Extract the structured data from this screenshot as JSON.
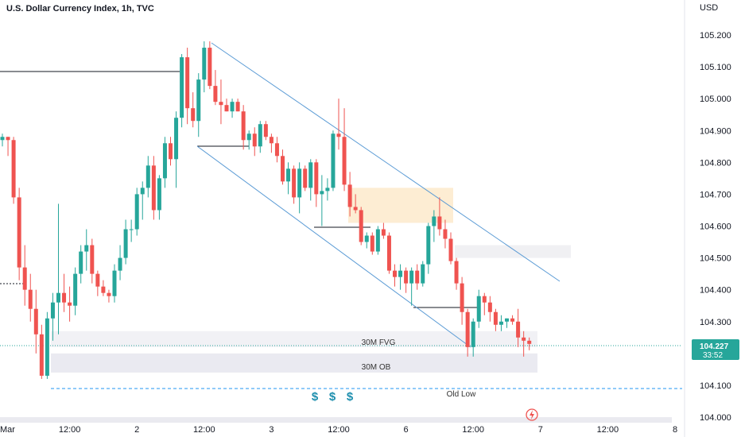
{
  "title": "U.S. Dollar Currency Index, 1h, TVC",
  "chart_data": {
    "type": "candlestick",
    "currency": "USD",
    "y_ticks": [
      104.0,
      104.1,
      104.2,
      104.3,
      104.4,
      104.5,
      104.6,
      104.7,
      104.8,
      104.9,
      105.0,
      105.1,
      105.2
    ],
    "y_tick_labels": [
      "104.000",
      "104.100",
      "104.200",
      "104.300",
      "104.400",
      "104.500",
      "104.600",
      "104.700",
      "104.800",
      "104.900",
      "105.000",
      "105.100",
      "105.200"
    ],
    "x_ticks": [
      {
        "label": "Mar",
        "index": -3
      },
      {
        "label": "12:00",
        "index": 12
      },
      {
        "label": "2",
        "index": 24
      },
      {
        "label": "12:00",
        "index": 36
      },
      {
        "label": "3",
        "index": 48
      },
      {
        "label": "12:00",
        "index": 60
      },
      {
        "label": "6",
        "index": 72
      },
      {
        "label": "12:00",
        "index": 84
      },
      {
        "label": "7",
        "index": 96
      },
      {
        "label": "12:00",
        "index": 108
      },
      {
        "label": "8",
        "index": 120
      }
    ],
    "last_price": "104.227",
    "countdown": "33:52",
    "candles": [
      [
        104.87,
        104.89,
        104.85,
        104.88
      ],
      [
        104.88,
        104.88,
        104.82,
        104.87
      ],
      [
        104.87,
        104.88,
        104.67,
        104.69
      ],
      [
        104.69,
        104.72,
        104.43,
        104.47
      ],
      [
        104.47,
        104.54,
        104.35,
        104.4
      ],
      [
        104.4,
        104.45,
        104.3,
        104.34
      ],
      [
        104.34,
        104.4,
        104.2,
        104.26
      ],
      [
        104.26,
        104.29,
        104.12,
        104.13
      ],
      [
        104.13,
        104.33,
        104.12,
        104.31
      ],
      [
        104.31,
        104.39,
        104.24,
        104.36
      ],
      [
        104.36,
        104.67,
        104.26,
        104.39
      ],
      [
        104.39,
        104.45,
        104.33,
        104.36
      ],
      [
        104.36,
        104.41,
        104.3,
        104.35
      ],
      [
        104.35,
        104.47,
        104.32,
        104.45
      ],
      [
        104.45,
        104.54,
        104.42,
        104.52
      ],
      [
        104.52,
        104.59,
        104.46,
        104.54
      ],
      [
        104.54,
        104.56,
        104.42,
        104.45
      ],
      [
        104.45,
        104.46,
        104.38,
        104.41
      ],
      [
        104.41,
        104.43,
        104.38,
        104.39
      ],
      [
        104.39,
        104.4,
        104.36,
        104.38
      ],
      [
        104.38,
        104.48,
        104.36,
        104.46
      ],
      [
        104.46,
        104.54,
        104.43,
        104.5
      ],
      [
        104.5,
        104.62,
        104.48,
        104.59
      ],
      [
        104.59,
        104.62,
        104.55,
        104.59
      ],
      [
        104.59,
        104.72,
        104.57,
        104.7
      ],
      [
        104.7,
        104.74,
        104.62,
        104.72
      ],
      [
        104.72,
        104.82,
        104.69,
        104.79
      ],
      [
        104.79,
        104.82,
        104.62,
        104.65
      ],
      [
        104.65,
        104.76,
        104.62,
        104.75
      ],
      [
        104.75,
        104.88,
        104.72,
        104.86
      ],
      [
        104.86,
        104.88,
        104.79,
        104.81
      ],
      [
        104.81,
        104.96,
        104.72,
        104.94
      ],
      [
        104.94,
        105.14,
        104.91,
        105.13
      ],
      [
        105.13,
        105.16,
        104.92,
        104.97
      ],
      [
        104.97,
        105.02,
        104.91,
        104.93
      ],
      [
        104.93,
        105.08,
        104.88,
        105.06
      ],
      [
        105.06,
        105.18,
        105.02,
        105.16
      ],
      [
        105.16,
        105.18,
        105.03,
        105.04
      ],
      [
        105.04,
        105.09,
        104.98,
        104.99
      ],
      [
        104.99,
        105.06,
        104.92,
        104.98
      ],
      [
        104.98,
        105.0,
        104.96,
        104.96
      ],
      [
        104.96,
        105.0,
        104.94,
        104.99
      ],
      [
        104.99,
        105.0,
        104.96,
        104.96
      ],
      [
        104.96,
        104.98,
        104.84,
        104.87
      ],
      [
        104.87,
        104.9,
        104.84,
        104.89
      ],
      [
        104.89,
        104.91,
        104.82,
        104.85
      ],
      [
        104.85,
        104.93,
        104.83,
        104.92
      ],
      [
        104.92,
        104.93,
        104.87,
        104.88
      ],
      [
        104.88,
        104.89,
        104.83,
        104.86
      ],
      [
        104.86,
        104.88,
        104.8,
        104.82
      ],
      [
        104.82,
        104.84,
        104.73,
        104.74
      ],
      [
        104.74,
        104.8,
        104.7,
        104.78
      ],
      [
        104.78,
        104.79,
        104.67,
        104.69
      ],
      [
        104.69,
        104.8,
        104.64,
        104.78
      ],
      [
        104.78,
        104.79,
        104.71,
        104.72
      ],
      [
        104.72,
        104.81,
        104.68,
        104.8
      ],
      [
        104.8,
        104.81,
        104.66,
        104.7
      ],
      [
        104.7,
        104.76,
        104.6,
        104.71
      ],
      [
        104.71,
        104.75,
        104.68,
        104.72
      ],
      [
        104.72,
        104.9,
        104.71,
        104.89
      ],
      [
        104.89,
        105.0,
        104.84,
        104.88
      ],
      [
        104.88,
        104.97,
        104.71,
        104.73
      ],
      [
        104.73,
        104.77,
        104.63,
        104.66
      ],
      [
        104.66,
        104.7,
        104.64,
        104.65
      ],
      [
        104.65,
        104.66,
        104.54,
        104.55
      ],
      [
        104.55,
        104.58,
        104.53,
        104.57
      ],
      [
        104.57,
        104.58,
        104.51,
        104.52
      ],
      [
        104.52,
        104.6,
        104.51,
        104.59
      ],
      [
        104.59,
        104.61,
        104.56,
        104.57
      ],
      [
        104.57,
        104.58,
        104.45,
        104.46
      ],
      [
        104.46,
        104.48,
        104.41,
        104.44
      ],
      [
        104.44,
        104.48,
        104.4,
        104.46
      ],
      [
        104.46,
        104.47,
        104.39,
        104.42
      ],
      [
        104.42,
        104.47,
        104.35,
        104.46
      ],
      [
        104.46,
        104.48,
        104.4,
        104.42
      ],
      [
        104.42,
        104.49,
        104.41,
        104.48
      ],
      [
        104.48,
        104.61,
        104.45,
        104.6
      ],
      [
        104.6,
        104.65,
        104.55,
        104.63
      ],
      [
        104.63,
        104.69,
        104.57,
        104.59
      ],
      [
        104.59,
        104.62,
        104.53,
        104.56
      ],
      [
        104.56,
        104.58,
        104.48,
        104.49
      ],
      [
        104.49,
        104.5,
        104.4,
        104.42
      ],
      [
        104.42,
        104.44,
        104.29,
        104.33
      ],
      [
        104.33,
        104.34,
        104.19,
        104.22
      ],
      [
        104.22,
        104.31,
        104.19,
        104.3
      ],
      [
        104.3,
        104.4,
        104.28,
        104.38
      ],
      [
        104.38,
        104.39,
        104.32,
        104.36
      ],
      [
        104.36,
        104.38,
        104.3,
        104.33
      ],
      [
        104.33,
        104.34,
        104.27,
        104.29
      ],
      [
        104.29,
        104.32,
        104.27,
        104.3
      ],
      [
        104.3,
        104.31,
        104.28,
        104.31
      ],
      [
        104.31,
        104.32,
        104.29,
        104.3
      ],
      [
        104.3,
        104.34,
        104.22,
        104.25
      ],
      [
        104.25,
        104.27,
        104.19,
        104.24
      ],
      [
        104.24,
        104.25,
        104.21,
        104.23
      ]
    ],
    "annotations": {
      "fvg_label": "30M FVG",
      "ob_label": "30M OB",
      "old_low_label": "Old Low",
      "dollar_signs": [
        "$",
        "$",
        "$"
      ],
      "old_low_level": 104.09,
      "fvg_zone": [
        104.22,
        104.27
      ],
      "ob_zone": [
        104.14,
        104.2
      ],
      "supply_zone": [
        104.61,
        104.72
      ],
      "upper_zone": [
        104.5,
        104.54
      ]
    }
  },
  "colors": {
    "up": "#26a69a",
    "down": "#ef5350",
    "channel": "#5b9bd5",
    "price_tag": "#26a69a",
    "old_low": "#2196f3"
  }
}
